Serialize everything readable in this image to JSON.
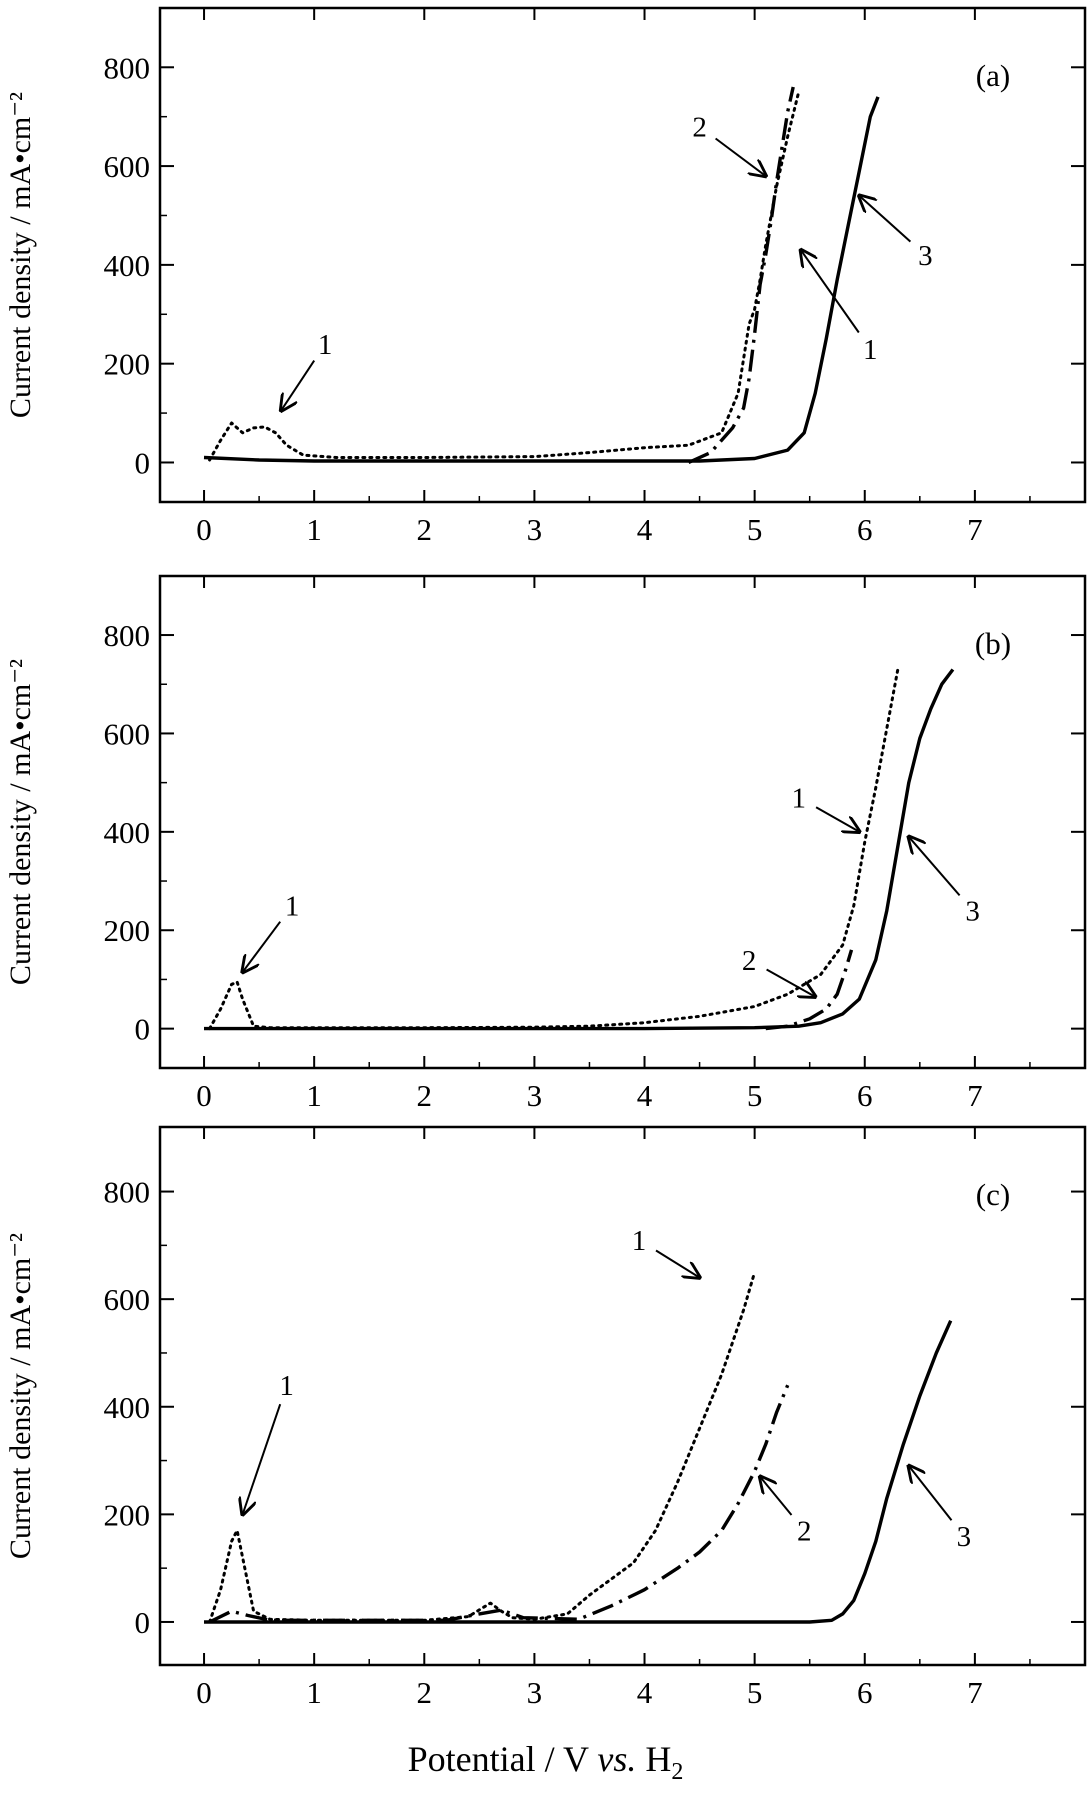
{
  "figure": {
    "xlabel_pre": "Potential / V ",
    "xlabel_vs": "vs.",
    "xlabel_h": " H",
    "xlabel_sub": "2"
  },
  "chart_data": [
    {
      "type": "line",
      "panel_label": "(a)",
      "ylabel": "Current density / mA•cm⁻²",
      "xlim": [
        -0.4,
        8.0
      ],
      "ylim": [
        -80,
        920
      ],
      "xticks": [
        0,
        1,
        2,
        3,
        4,
        5,
        6,
        7
      ],
      "yticks": [
        0,
        200,
        400,
        600,
        800
      ],
      "series": [
        {
          "id": "1",
          "style": "dotted",
          "x": [
            0.05,
            0.15,
            0.25,
            0.35,
            0.45,
            0.55,
            0.65,
            0.75,
            0.9,
            1.2,
            2.0,
            3.0,
            3.5,
            4.0,
            4.4,
            4.7,
            4.85,
            4.95,
            5.0,
            5.05,
            5.1,
            5.2,
            5.3,
            5.4
          ],
          "y": [
            5,
            45,
            80,
            60,
            70,
            72,
            60,
            35,
            15,
            10,
            10,
            12,
            20,
            30,
            35,
            60,
            140,
            280,
            310,
            370,
            440,
            560,
            660,
            750
          ]
        },
        {
          "id": "2",
          "style": "dash-dot",
          "x": [
            4.4,
            4.6,
            4.8,
            4.9,
            4.95,
            5.0,
            5.05,
            5.1,
            5.15,
            5.2,
            5.25,
            5.3,
            5.35
          ],
          "y": [
            0,
            20,
            70,
            110,
            170,
            260,
            360,
            420,
            490,
            570,
            640,
            710,
            760
          ]
        },
        {
          "id": "3",
          "style": "solid",
          "x": [
            0.0,
            0.5,
            1.0,
            2.0,
            3.0,
            4.0,
            4.5,
            5.0,
            5.3,
            5.45,
            5.55,
            5.65,
            5.75,
            5.85,
            5.95,
            6.05,
            6.12
          ],
          "y": [
            10,
            5,
            3,
            3,
            3,
            3,
            3,
            8,
            25,
            60,
            140,
            250,
            370,
            480,
            590,
            700,
            740
          ]
        }
      ],
      "annotations": [
        {
          "text": "1",
          "label_at": [
            1.1,
            240
          ],
          "arrow_to": [
            0.7,
            105
          ]
        },
        {
          "text": "2",
          "label_at": [
            4.5,
            680
          ],
          "arrow_to": [
            5.1,
            580
          ]
        },
        {
          "text": "1",
          "label_at": [
            6.05,
            230
          ],
          "arrow_to": [
            5.42,
            430
          ]
        },
        {
          "text": "3",
          "label_at": [
            6.55,
            420
          ],
          "arrow_to": [
            5.95,
            540
          ]
        }
      ]
    },
    {
      "type": "line",
      "panel_label": "(b)",
      "ylabel": "Current density / mA•cm⁻²",
      "xlim": [
        -0.4,
        8.0
      ],
      "ylim": [
        -80,
        920
      ],
      "xticks": [
        0,
        1,
        2,
        3,
        4,
        5,
        6,
        7
      ],
      "yticks": [
        0,
        200,
        400,
        600,
        800
      ],
      "series": [
        {
          "id": "1",
          "style": "dotted",
          "x": [
            0.05,
            0.15,
            0.25,
            0.3,
            0.35,
            0.45,
            0.6,
            1.0,
            2.0,
            3.0,
            3.5,
            4.0,
            4.5,
            5.0,
            5.3,
            5.6,
            5.8,
            5.9,
            6.0,
            6.1,
            6.2,
            6.3
          ],
          "y": [
            0,
            40,
            90,
            95,
            60,
            5,
            2,
            2,
            2,
            3,
            5,
            12,
            25,
            45,
            70,
            110,
            170,
            250,
            380,
            490,
            610,
            730
          ]
        },
        {
          "id": "2",
          "style": "dash-dot",
          "x": [
            5.1,
            5.3,
            5.5,
            5.65,
            5.75,
            5.82,
            5.88
          ],
          "y": [
            0,
            5,
            20,
            40,
            70,
            115,
            160
          ]
        },
        {
          "id": "3",
          "style": "solid",
          "x": [
            0.0,
            1.0,
            2.0,
            3.0,
            4.0,
            5.0,
            5.4,
            5.6,
            5.8,
            5.95,
            6.1,
            6.2,
            6.3,
            6.4,
            6.5,
            6.6,
            6.7,
            6.8
          ],
          "y": [
            0,
            0,
            0,
            0,
            0,
            2,
            5,
            12,
            30,
            60,
            140,
            240,
            370,
            500,
            590,
            650,
            700,
            730
          ]
        }
      ],
      "annotations": [
        {
          "text": "1",
          "label_at": [
            0.8,
            250
          ],
          "arrow_to": [
            0.35,
            115
          ]
        },
        {
          "text": "1",
          "label_at": [
            5.4,
            470
          ],
          "arrow_to": [
            5.95,
            400
          ]
        },
        {
          "text": "2",
          "label_at": [
            4.95,
            140
          ],
          "arrow_to": [
            5.55,
            65
          ]
        },
        {
          "text": "3",
          "label_at": [
            6.98,
            240
          ],
          "arrow_to": [
            6.4,
            390
          ]
        }
      ]
    },
    {
      "type": "line",
      "panel_label": "(c)",
      "ylabel": "Current density / mA•cm⁻²",
      "xlim": [
        -0.4,
        8.0
      ],
      "ylim": [
        -80,
        920
      ],
      "xticks": [
        0,
        1,
        2,
        3,
        4,
        5,
        6,
        7
      ],
      "yticks": [
        0,
        200,
        400,
        600,
        800
      ],
      "series": [
        {
          "id": "1",
          "style": "dotted",
          "x": [
            0.05,
            0.15,
            0.25,
            0.3,
            0.35,
            0.45,
            0.6,
            1.0,
            2.0,
            2.4,
            2.6,
            2.7,
            2.8,
            3.0,
            3.3,
            3.5,
            3.7,
            3.9,
            4.1,
            4.3,
            4.5,
            4.7,
            4.9,
            5.0
          ],
          "y": [
            0,
            60,
            150,
            170,
            120,
            20,
            5,
            3,
            3,
            10,
            35,
            20,
            8,
            5,
            15,
            50,
            80,
            110,
            170,
            260,
            360,
            460,
            580,
            650
          ]
        },
        {
          "id": "2",
          "style": "dash-dot",
          "x": [
            0.05,
            0.25,
            0.4,
            0.6,
            2.2,
            2.5,
            2.7,
            2.9,
            3.4,
            3.7,
            4.0,
            4.3,
            4.5,
            4.7,
            4.85,
            5.0,
            5.1,
            5.2,
            5.3
          ],
          "y": [
            0,
            20,
            12,
            3,
            3,
            15,
            22,
            8,
            5,
            30,
            60,
            100,
            130,
            170,
            220,
            280,
            330,
            390,
            440
          ]
        },
        {
          "id": "3",
          "style": "solid",
          "x": [
            0.0,
            1.0,
            2.0,
            3.0,
            4.0,
            5.0,
            5.5,
            5.7,
            5.8,
            5.9,
            6.0,
            6.1,
            6.2,
            6.35,
            6.5,
            6.65,
            6.78
          ],
          "y": [
            0,
            0,
            0,
            0,
            0,
            0,
            0,
            3,
            15,
            40,
            90,
            150,
            230,
            330,
            420,
            500,
            560
          ]
        }
      ],
      "annotations": [
        {
          "text": "1",
          "label_at": [
            0.75,
            440
          ],
          "arrow_to": [
            0.35,
            200
          ]
        },
        {
          "text": "1",
          "label_at": [
            3.95,
            710
          ],
          "arrow_to": [
            4.5,
            640
          ]
        },
        {
          "text": "2",
          "label_at": [
            5.45,
            170
          ],
          "arrow_to": [
            5.05,
            270
          ]
        },
        {
          "text": "3",
          "label_at": [
            6.9,
            160
          ],
          "arrow_to": [
            6.4,
            290
          ]
        }
      ]
    }
  ]
}
